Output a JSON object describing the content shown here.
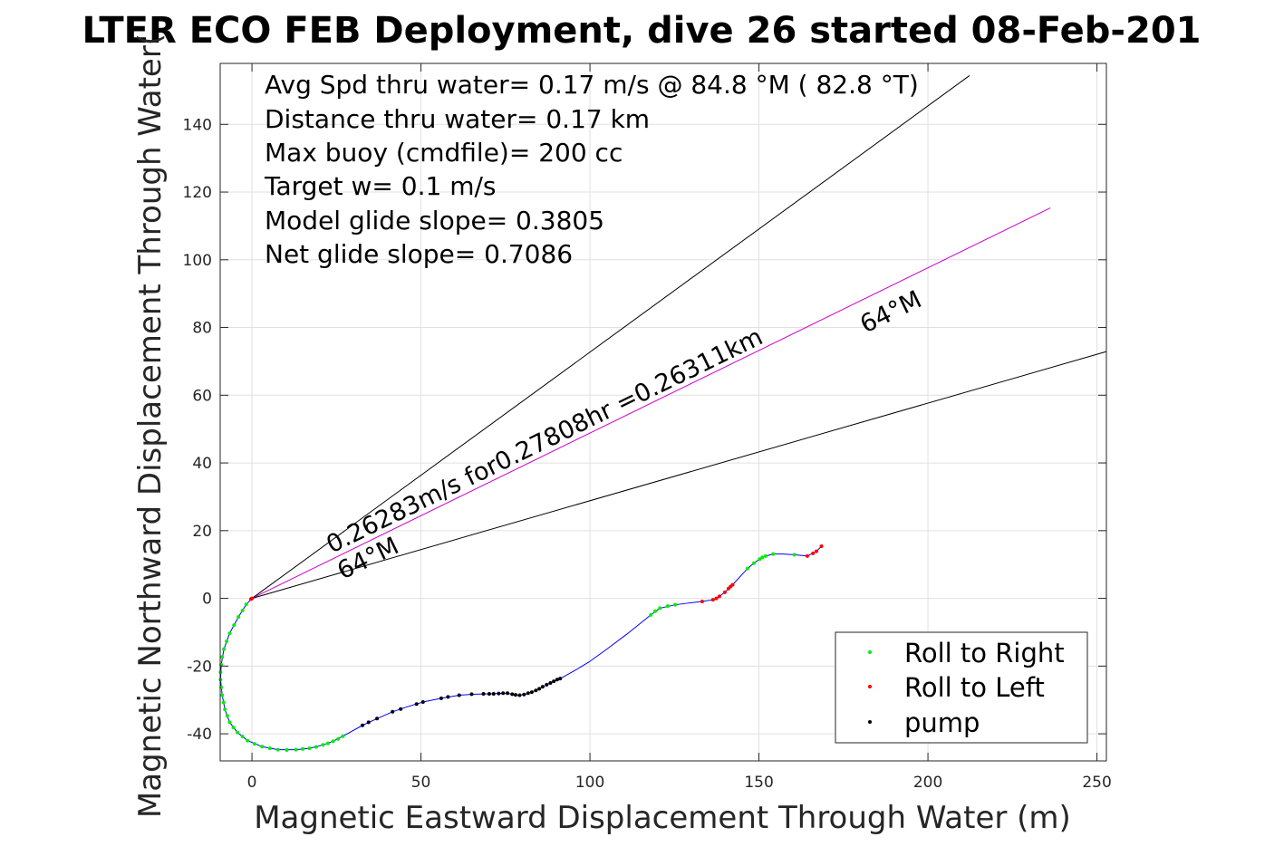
{
  "chart_data": {
    "type": "line",
    "title": "LTER ECO FEB Deployment, dive 26 started 08-Feb-201",
    "xlabel": "Magnetic Eastward Displacement Through Water (m)",
    "ylabel": "Magnetic Northward Displacement Through Water(",
    "xlim": [
      -9.4,
      252.8
    ],
    "ylim": [
      -48,
      158
    ],
    "xticks": [
      0,
      50,
      100,
      150,
      200,
      250
    ],
    "yticks": [
      -40,
      -20,
      0,
      20,
      40,
      60,
      80,
      100,
      120,
      140
    ],
    "grid": true,
    "info_lines": [
      "Avg Spd thru water=  0.17 m/s @  84.8 °M ( 82.8 °T)",
      "Distance thru water=  0.17 km",
      "Max buoy (cmdfile)= 200 cc",
      "Target w= 0.1 m/s",
      "Model glide slope= 0.3805",
      "Net glide slope= 0.7086"
    ],
    "annotations": {
      "speed_label": "0.26283m/s for0.27808hr =0.26311km",
      "heading_label_low": "64°M",
      "heading_label_high": "64°M"
    },
    "reference_lines": [
      {
        "name": "heading-plus",
        "color": "#000000",
        "to": [
          212.3,
          154.4
        ]
      },
      {
        "name": "heading",
        "color": "#cc00cc",
        "to": [
          236.2,
          115.3
        ]
      },
      {
        "name": "heading-minus",
        "color": "#000000",
        "to": [
          252.8,
          72.9
        ]
      }
    ],
    "track": {
      "color": "#0000ff",
      "points": [
        [
          0,
          0
        ],
        [
          -1.7,
          -1.8
        ],
        [
          -4,
          -5.5
        ],
        [
          -6.6,
          -10.3
        ],
        [
          -8.3,
          -15
        ],
        [
          -9.1,
          -19.6
        ],
        [
          -9.3,
          -24
        ],
        [
          -8.8,
          -28.6
        ],
        [
          -8,
          -32.8
        ],
        [
          -6.6,
          -36.6
        ],
        [
          -4.3,
          -39.6
        ],
        [
          -1.3,
          -42
        ],
        [
          3,
          -43.8
        ],
        [
          7.7,
          -44.7
        ],
        [
          13,
          -44.7
        ],
        [
          17,
          -44.3
        ],
        [
          21,
          -43.3
        ],
        [
          24,
          -42.2
        ],
        [
          26.9,
          -40.7
        ],
        [
          32.7,
          -37.5
        ],
        [
          37,
          -35.5
        ],
        [
          41.6,
          -33.5
        ],
        [
          46,
          -32
        ],
        [
          50.6,
          -30.6
        ],
        [
          56,
          -29.5
        ],
        [
          61.3,
          -28.6
        ],
        [
          66,
          -28.3
        ],
        [
          70.2,
          -28.2
        ],
        [
          73,
          -28.1
        ],
        [
          75.6,
          -28
        ],
        [
          77.5,
          -28.5
        ],
        [
          79.2,
          -28.6
        ],
        [
          81,
          -28.3
        ],
        [
          82.8,
          -27.7
        ],
        [
          85,
          -26.7
        ],
        [
          87.2,
          -25.5
        ],
        [
          89.3,
          -24.5
        ],
        [
          91.2,
          -23.7
        ],
        [
          95,
          -21.6
        ],
        [
          99.7,
          -18.8
        ],
        [
          105,
          -15
        ],
        [
          111,
          -10.5
        ],
        [
          118,
          -4.9
        ],
        [
          120.7,
          -2.9
        ],
        [
          125.2,
          -1.9
        ],
        [
          129,
          -1.4
        ],
        [
          133.2,
          -0.9
        ],
        [
          136.4,
          -0.4
        ],
        [
          138.3,
          0.6
        ],
        [
          139.9,
          1.8
        ],
        [
          142.2,
          4
        ],
        [
          144.5,
          6.5
        ],
        [
          146.6,
          8.8
        ],
        [
          148.5,
          10.4
        ],
        [
          150.2,
          11.6
        ],
        [
          152,
          12.5
        ],
        [
          154.2,
          13.1
        ],
        [
          157,
          13.1
        ],
        [
          160.5,
          12.9
        ],
        [
          164.3,
          12.5
        ],
        [
          166,
          13.3
        ],
        [
          167,
          13.9
        ],
        [
          168.5,
          15.4
        ]
      ]
    },
    "series": [
      {
        "name": "Roll to Right",
        "color": "#00ee00",
        "points": [
          [
            -1.7,
            -1.8
          ],
          [
            -2.8,
            -3.6
          ],
          [
            -4,
            -5.5
          ],
          [
            -5.3,
            -7.9
          ],
          [
            -6.6,
            -10.3
          ],
          [
            -7.5,
            -12.7
          ],
          [
            -8.3,
            -15
          ],
          [
            -8.8,
            -17.3
          ],
          [
            -9.1,
            -19.6
          ],
          [
            -9.3,
            -21.8
          ],
          [
            -9.3,
            -24
          ],
          [
            -9.1,
            -26.3
          ],
          [
            -8.8,
            -28.6
          ],
          [
            -8.4,
            -30.7
          ],
          [
            -8,
            -32.8
          ],
          [
            -7.3,
            -34.7
          ],
          [
            -6.6,
            -36.6
          ],
          [
            -5.5,
            -38.1
          ],
          [
            -4.3,
            -39.6
          ],
          [
            -2.8,
            -40.8
          ],
          [
            -1.3,
            -42
          ],
          [
            0.8,
            -43
          ],
          [
            3,
            -43.8
          ],
          [
            5.3,
            -44.3
          ],
          [
            7.7,
            -44.7
          ],
          [
            10.3,
            -44.8
          ],
          [
            13,
            -44.7
          ],
          [
            15,
            -44.5
          ],
          [
            17,
            -44.3
          ],
          [
            19,
            -43.9
          ],
          [
            21,
            -43.3
          ],
          [
            22.5,
            -42.8
          ],
          [
            24,
            -42.2
          ],
          [
            25.5,
            -41.5
          ],
          [
            26.9,
            -40.7
          ],
          [
            118,
            -4.9
          ],
          [
            119.3,
            -3.8
          ],
          [
            120.7,
            -2.9
          ],
          [
            123,
            -2.3
          ],
          [
            125.2,
            -1.9
          ],
          [
            146.6,
            8.8
          ],
          [
            148.5,
            10.4
          ],
          [
            150.2,
            11.6
          ],
          [
            151,
            12.1
          ],
          [
            152,
            12.5
          ],
          [
            154.2,
            13.1
          ],
          [
            160.5,
            12.9
          ]
        ]
      },
      {
        "name": "Roll to Left",
        "color": "#ff0000",
        "points": [
          [
            0,
            0
          ],
          [
            -0.3,
            -0.2
          ],
          [
            133.2,
            -0.9
          ],
          [
            136.4,
            -0.4
          ],
          [
            137.4,
            0
          ],
          [
            138.3,
            0.6
          ],
          [
            139.9,
            1.8
          ],
          [
            141,
            2.9
          ],
          [
            141.6,
            3.5
          ],
          [
            142.2,
            4
          ],
          [
            164.3,
            12.5
          ],
          [
            166,
            13.3
          ],
          [
            167,
            13.9
          ],
          [
            168.5,
            15.4
          ]
        ]
      },
      {
        "name": "pump",
        "color": "#000000",
        "points": [
          [
            32.7,
            -37.5
          ],
          [
            34.5,
            -36.6
          ],
          [
            37,
            -35.5
          ],
          [
            41.6,
            -33.5
          ],
          [
            44,
            -32.7
          ],
          [
            48.7,
            -31.2
          ],
          [
            50.6,
            -30.6
          ],
          [
            56,
            -29.5
          ],
          [
            58,
            -29.1
          ],
          [
            61.3,
            -28.6
          ],
          [
            65,
            -28.3
          ],
          [
            68.5,
            -28.2
          ],
          [
            70.2,
            -28.2
          ],
          [
            71.5,
            -28.2
          ],
          [
            73,
            -28.1
          ],
          [
            74.3,
            -28
          ],
          [
            75.6,
            -28
          ],
          [
            77,
            -28.3
          ],
          [
            78,
            -28.5
          ],
          [
            79.2,
            -28.6
          ],
          [
            80.5,
            -28.4
          ],
          [
            81.7,
            -28
          ],
          [
            82.8,
            -27.7
          ],
          [
            84,
            -27.2
          ],
          [
            85,
            -26.7
          ],
          [
            86,
            -26.1
          ],
          [
            87.2,
            -25.5
          ],
          [
            88.3,
            -25
          ],
          [
            89.3,
            -24.5
          ],
          [
            90.3,
            -24
          ],
          [
            91.2,
            -23.7
          ]
        ]
      }
    ],
    "legend": {
      "placement": "bottom-right",
      "entries": [
        "Roll to Right",
        "Roll to Left",
        "pump"
      ]
    }
  }
}
